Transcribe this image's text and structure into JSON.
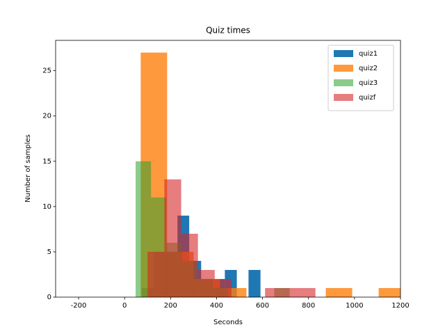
{
  "chart_data": {
    "type": "histogram",
    "title": "Quiz times",
    "xlabel": "Seconds",
    "ylabel": "Number of samples",
    "xlim": [
      -300,
      1200
    ],
    "ylim": [
      0,
      28.35
    ],
    "xticks": [
      -200,
      0,
      200,
      400,
      600,
      800,
      1000,
      1200
    ],
    "yticks": [
      0,
      5,
      10,
      15,
      20,
      25
    ],
    "legend": "upper right",
    "series": [
      {
        "name": "quiz1",
        "color": "#1f77b4",
        "alpha": 1,
        "bins": [
          75,
          127,
          178,
          230,
          281,
          333,
          385,
          436,
          488,
          539,
          591
        ],
        "values": [
          1,
          5,
          5,
          9,
          4,
          2,
          2,
          3,
          0,
          3
        ]
      },
      {
        "name": "quiz2",
        "color": "#ff7f0e",
        "alpha": 0.8,
        "bins": [
          70,
          185,
          300,
          415,
          530,
          645,
          760,
          875,
          990,
          1105,
          1220
        ],
        "values": [
          27,
          5,
          2,
          1,
          0,
          0,
          0,
          1,
          0,
          1
        ]
      },
      {
        "name": "quiz3",
        "color": "#2ca02c",
        "alpha": 0.55,
        "bins": [
          48,
          115,
          182,
          249,
          316,
          383,
          450,
          517,
          584,
          651,
          718
        ],
        "values": [
          15,
          11,
          6,
          4,
          2,
          1,
          0,
          0,
          0,
          1
        ]
      },
      {
        "name": "quizf",
        "color": "#d62728",
        "alpha": 0.6,
        "bins": [
          100,
          173,
          246,
          319,
          392,
          465,
          538,
          611,
          684,
          757,
          830
        ],
        "values": [
          5,
          13,
          7,
          3,
          2,
          0,
          0,
          1,
          1,
          1
        ]
      }
    ]
  }
}
